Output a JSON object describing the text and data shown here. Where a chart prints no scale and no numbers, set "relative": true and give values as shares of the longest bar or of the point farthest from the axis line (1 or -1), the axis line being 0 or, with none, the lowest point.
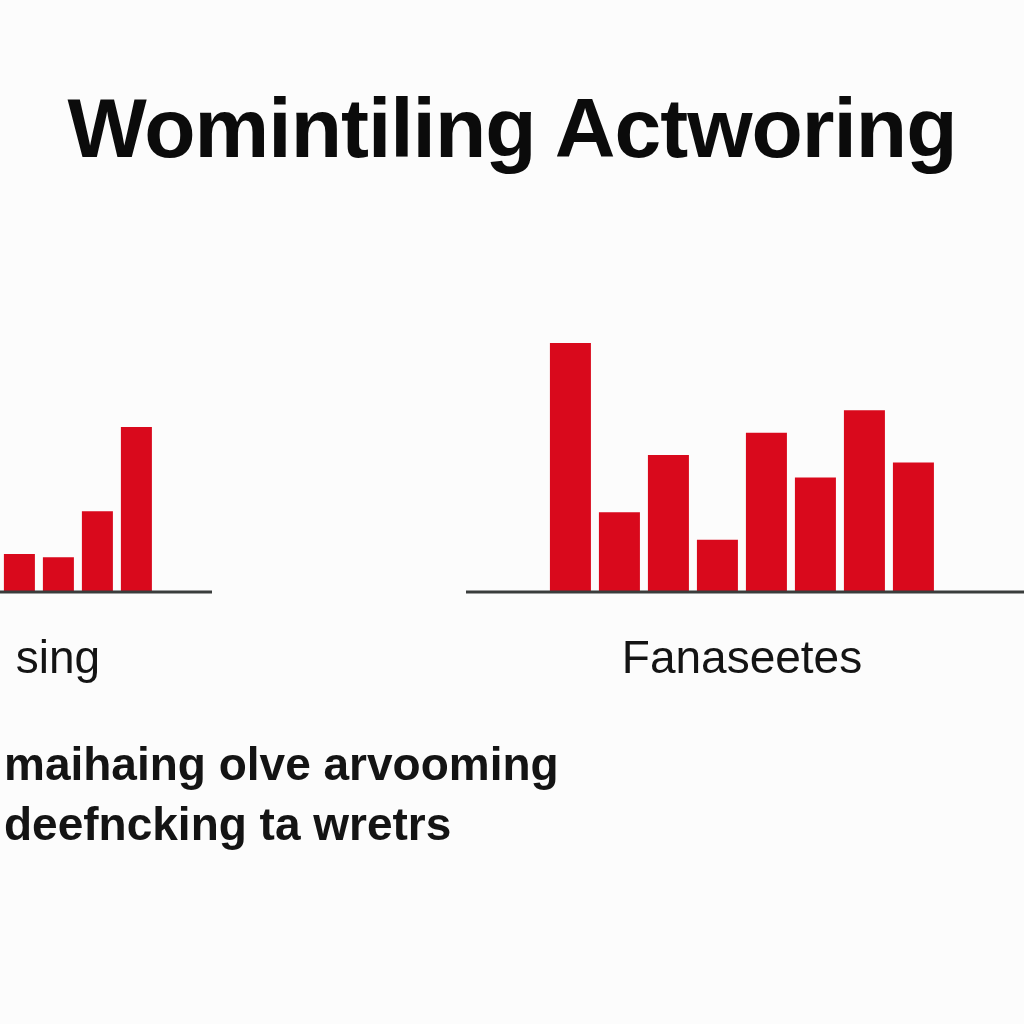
{
  "chart_data": [
    {
      "type": "bar",
      "title": "Womintiling Actworing",
      "categories": [
        null,
        null,
        null,
        null
      ],
      "values": [
        0.23,
        0.21,
        0.49,
        1
      ],
      "color": "#d9091c",
      "relative": true,
      "xlabel": "sing",
      "annotations": [
        "maihaing olve arvooming",
        "deefncking ta wretrs"
      ]
    },
    {
      "type": "bar",
      "categories": [
        null,
        null,
        null,
        null,
        null,
        null,
        null,
        null
      ],
      "values": [
        1,
        0.32,
        0.55,
        0.21,
        0.64,
        0.46,
        0.73,
        0.52
      ],
      "color": "#d9091c",
      "relative": true,
      "xlabel": "Fanaseetes"
    }
  ]
}
